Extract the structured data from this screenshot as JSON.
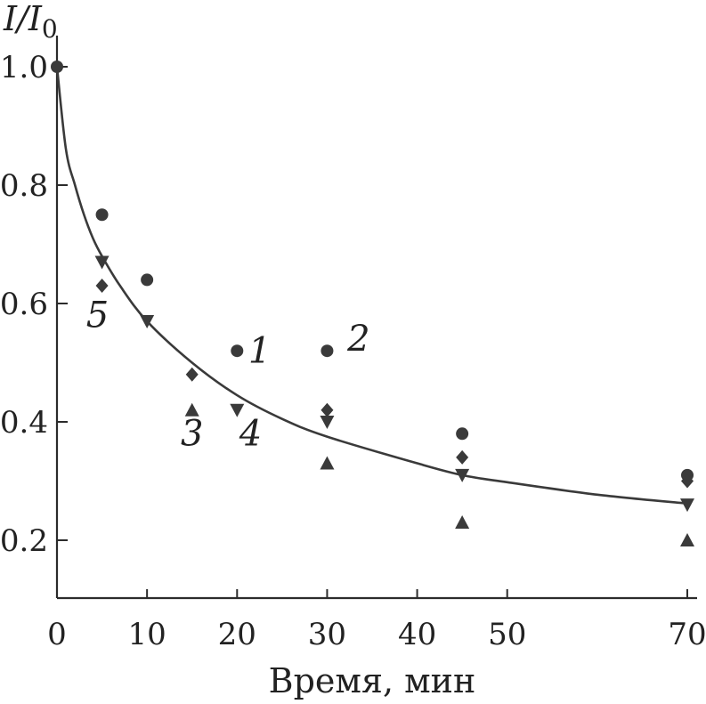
{
  "chart_data": {
    "type": "scatter",
    "ylabel": "I/I",
    "ylabel_sub": "0",
    "xlabel": "Время, мин",
    "xlim": [
      0,
      70
    ],
    "ylim": [
      0.1,
      1.0
    ],
    "xticks": [
      "0",
      "10",
      "20",
      "30",
      "40",
      "50",
      "70"
    ],
    "xtick_values": [
      0,
      10,
      20,
      30,
      40,
      50,
      70
    ],
    "yticks": [
      "0.2",
      "0.4",
      "0.6",
      "0.8",
      "1.0"
    ],
    "ytick_values": [
      0.2,
      0.4,
      0.6,
      0.8,
      1.0
    ],
    "grid": false,
    "series": [
      {
        "name": "1",
        "marker": "circle",
        "x": [
          0,
          5,
          10,
          20,
          45,
          70
        ],
        "y": [
          1.0,
          0.75,
          0.64,
          0.52,
          0.38,
          0.31
        ]
      },
      {
        "name": "2",
        "marker": "circle",
        "x": [
          30
        ],
        "y": [
          0.52
        ]
      },
      {
        "name": "3",
        "marker": "triangle-up",
        "x": [
          15,
          30,
          45,
          70
        ],
        "y": [
          0.42,
          0.33,
          0.23,
          0.2
        ]
      },
      {
        "name": "4",
        "marker": "triangle-down",
        "x": [
          5,
          10,
          20,
          30,
          45,
          70
        ],
        "y": [
          0.67,
          0.57,
          0.42,
          0.4,
          0.31,
          0.26
        ]
      },
      {
        "name": "5",
        "marker": "diamond",
        "x": [
          5,
          15,
          30,
          45,
          70
        ],
        "y": [
          0.63,
          0.48,
          0.42,
          0.34,
          0.3
        ]
      }
    ],
    "fit_curve": {
      "x": [
        0,
        1,
        2,
        3,
        4,
        5,
        7,
        10,
        15,
        20,
        25,
        30,
        40,
        45,
        50,
        60,
        70
      ],
      "y": [
        1.0,
        0.86,
        0.8,
        0.75,
        0.71,
        0.68,
        0.63,
        0.57,
        0.5,
        0.445,
        0.405,
        0.375,
        0.33,
        0.31,
        0.298,
        0.277,
        0.262
      ]
    },
    "annotations": [
      {
        "text": "1",
        "x": 22.5,
        "y": 0.5
      },
      {
        "text": "2",
        "x": 33.5,
        "y": 0.52
      },
      {
        "text": "3",
        "x": 15,
        "y": 0.36
      },
      {
        "text": "4",
        "x": 21.5,
        "y": 0.36
      },
      {
        "text": "5",
        "x": 4.5,
        "y": 0.56
      }
    ]
  }
}
